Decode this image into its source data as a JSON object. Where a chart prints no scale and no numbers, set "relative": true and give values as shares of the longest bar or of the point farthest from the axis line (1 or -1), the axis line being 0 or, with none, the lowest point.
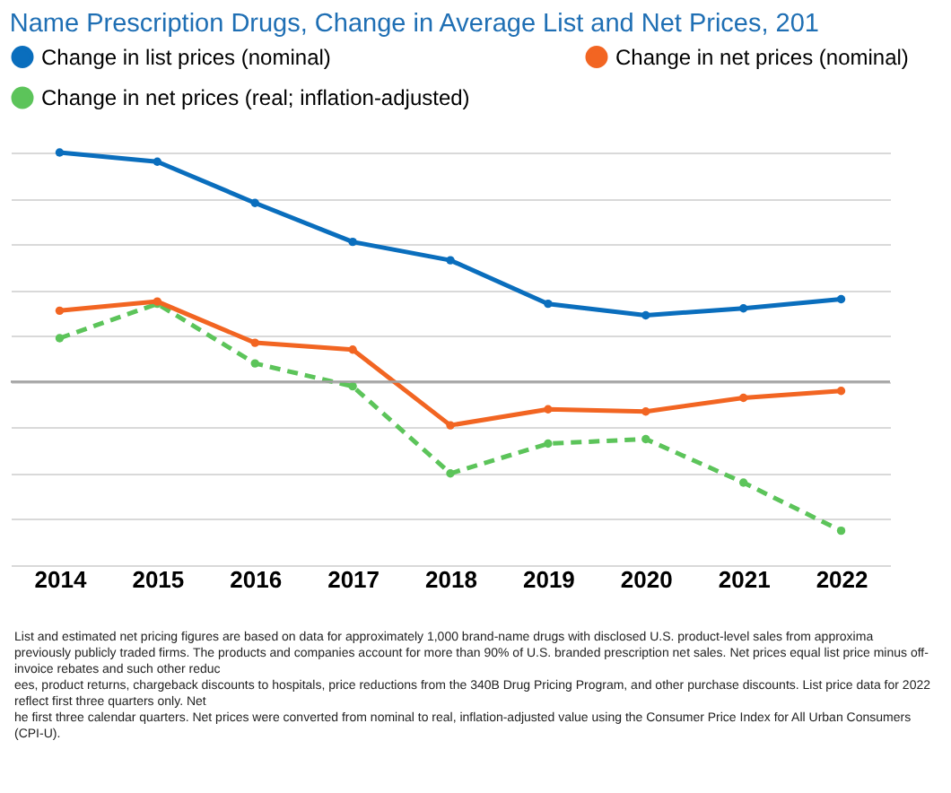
{
  "chart_data": {
    "type": "line",
    "title": "Name Prescription Drugs, Change in Average List and Net Prices, 201",
    "categories": [
      "2014",
      "2015",
      "2016",
      "2017",
      "2018",
      "2019",
      "2020",
      "2021",
      "2022"
    ],
    "relative": true,
    "grid": "y",
    "legend": "top",
    "marker": "circle",
    "series": [
      {
        "name": "Change in list prices (nominal)",
        "color": "#0a6ebd",
        "values": [
          1.0,
          0.96,
          0.78,
          0.61,
          0.53,
          0.34,
          0.29,
          0.32,
          0.36
        ]
      },
      {
        "name": "Change in net prices (nominal)",
        "color": "#f26522",
        "values": [
          0.31,
          0.35,
          0.17,
          0.14,
          -0.19,
          -0.12,
          -0.13,
          -0.07,
          -0.04
        ]
      },
      {
        "name": "Change in net prices (real; inflation-adjusted)",
        "color": "#5cc45a",
        "line_style": "dashed",
        "values": [
          0.19,
          0.34,
          0.08,
          -0.02,
          -0.4,
          -0.27,
          -0.25,
          -0.44,
          -0.65
        ]
      }
    ],
    "annotations": [
      "List and estimated net pricing figures are based on data for approximately 1,000 brand-name drugs with disclosed U.S. product-level sales from approxima",
      "previously publicly traded firms. The products and companies account for more than 90% of U.S. branded prescription net sales. Net prices equal list price minus off-invoice rebates and such other reduc",
      "ees, product returns, chargeback discounts to hospitals, price reductions from the 340B Drug Pricing Program, and other purchase discounts. List price data for 2022 reflect first three quarters only. Net",
      "he first three calendar quarters. Net prices were converted from nominal to real, inflation-adjusted value using the Consumer Price Index for All Urban Consumers (CPI-U)."
    ]
  }
}
